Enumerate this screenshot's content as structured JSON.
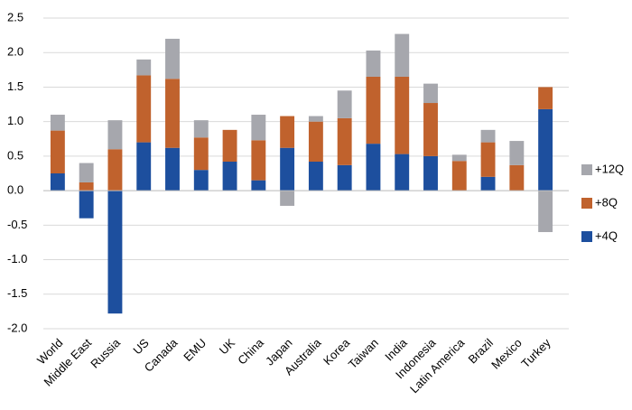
{
  "chart_data": {
    "type": "stacked-bar",
    "categories": [
      "World",
      "Middle East",
      "Russia",
      "US",
      "Canada",
      "EMU",
      "UK",
      "China",
      "Japan",
      "Australia",
      "Korea",
      "Taiwan",
      "India",
      "Indonesia",
      "Latin America",
      "Brazil",
      "Mexico",
      "Turkey"
    ],
    "series": [
      {
        "name": "+4Q",
        "color": "#1d4f9e",
        "values": [
          0.25,
          -0.4,
          -1.78,
          0.7,
          0.62,
          0.3,
          0.42,
          0.15,
          0.62,
          0.42,
          0.37,
          0.68,
          0.53,
          0.5,
          0,
          0.2,
          0,
          1.18
        ]
      },
      {
        "name": "+8Q",
        "color": "#c0622d",
        "values": [
          0.62,
          0.12,
          0.6,
          0.97,
          1.0,
          0.47,
          0.46,
          0.58,
          0.46,
          0.58,
          0.68,
          0.97,
          1.12,
          0.77,
          0.43,
          0.5,
          0.37,
          0.32
        ]
      },
      {
        "name": "+12Q",
        "color": "#a6a7ad",
        "values": [
          0.23,
          0.28,
          0.42,
          0.23,
          0.58,
          0.25,
          0,
          0.37,
          -0.22,
          0.08,
          0.4,
          0.38,
          0.62,
          0.28,
          0.09,
          0.18,
          0.35,
          -0.6
        ]
      }
    ],
    "ylim": [
      -2,
      2.5
    ],
    "yticks": [
      {
        "value": -2,
        "label": "-2.0"
      },
      -1.5,
      {
        "value": -1,
        "label": "-1.0"
      },
      -0.5,
      {
        "value": 0,
        "label": "0.0"
      },
      0.5,
      {
        "value": 1,
        "label": "1.0"
      },
      1.5,
      {
        "value": 2,
        "label": "2.0"
      },
      2.5
    ],
    "grid": true,
    "legend": "right"
  }
}
